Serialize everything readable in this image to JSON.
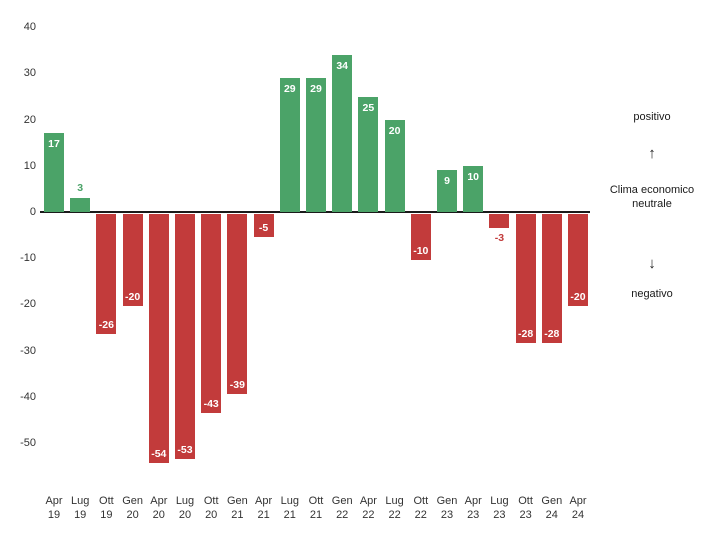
{
  "chart_data": {
    "type": "bar",
    "title": "",
    "xlabel": "",
    "ylabel": "",
    "grid": false,
    "ylim": [
      -60,
      40
    ],
    "yticks": [
      40,
      30,
      20,
      10,
      0,
      -10,
      -20,
      -30,
      -40,
      -50
    ],
    "categories": [
      "Apr 19",
      "Lug 19",
      "Ott 19",
      "Gen 20",
      "Apr 20",
      "Lug 20",
      "Ott 20",
      "Gen 21",
      "Apr 21",
      "Lug 21",
      "Ott 21",
      "Gen 22",
      "Apr 22",
      "Lug 22",
      "Ott 22",
      "Gen 23",
      "Apr 23",
      "Lug 23",
      "Ott 23",
      "Gen 24",
      "Apr 24"
    ],
    "values": [
      17,
      3,
      -26,
      -20,
      -54,
      -53,
      -43,
      -39,
      -5,
      29,
      29,
      34,
      25,
      20,
      -10,
      9,
      10,
      -3,
      -28,
      -28,
      -20
    ],
    "positive_color": "#4ba368",
    "negative_color": "#c23b3b",
    "value_label_color_inside": "#ffffff"
  },
  "annotations": {
    "positive_label": "positivo",
    "neutral_line1": "Clima economico",
    "neutral_line2": "neutrale",
    "negative_label": "negativo",
    "up_arrow": "↑",
    "down_arrow": "↓"
  }
}
